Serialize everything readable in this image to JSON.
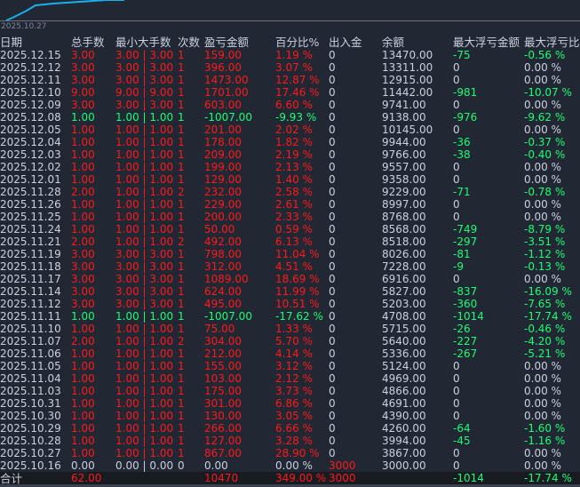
{
  "chart": {
    "start_date": "2025.10.27",
    "line_color": "#1ab0f0"
  },
  "colors": {
    "gain": "#ff1a1a",
    "loss": "#1aff73",
    "neutral": "#c9d1e0",
    "background": "#212733"
  },
  "headers": [
    "日期",
    "总手数",
    "最小大手数",
    "次数",
    "盈亏金额",
    "百分比%",
    "出入金",
    "余额",
    "最大浮亏金额",
    "最大浮亏比例"
  ],
  "rows": [
    [
      "2025.12.15",
      "3.00",
      "3.00 | 3.00",
      "1",
      "159.00",
      "1.19 %",
      "0",
      "13470.00",
      "-75",
      "-0.56 %",
      "red"
    ],
    [
      "2025.12.12",
      "3.00",
      "3.00 | 3.00",
      "1",
      "396.00",
      "3.07 %",
      "0",
      "13311.00",
      "0",
      "0.00 %",
      "red"
    ],
    [
      "2025.12.11",
      "3.00",
      "3.00 | 3.00",
      "1",
      "1473.00",
      "12.87 %",
      "0",
      "12915.00",
      "0",
      "0.00 %",
      "red"
    ],
    [
      "2025.12.10",
      "9.00",
      "9.00 | 9.00",
      "1",
      "1701.00",
      "17.46 %",
      "0",
      "11442.00",
      "-981",
      "-10.07 %",
      "red"
    ],
    [
      "2025.12.09",
      "3.00",
      "3.00 | 3.00",
      "1",
      "603.00",
      "6.60 %",
      "0",
      "9741.00",
      "0",
      "0.00 %",
      "red"
    ],
    [
      "2025.12.08",
      "1.00",
      "1.00 | 1.00",
      "1",
      "-1007.00",
      "-9.93 %",
      "0",
      "9138.00",
      "-976",
      "-9.62 %",
      "green"
    ],
    [
      "2025.12.05",
      "1.00",
      "1.00 | 1.00",
      "1",
      "201.00",
      "2.02 %",
      "0",
      "10145.00",
      "0",
      "0.00 %",
      "red"
    ],
    [
      "2025.12.04",
      "1.00",
      "1.00 | 1.00",
      "1",
      "178.00",
      "1.82 %",
      "0",
      "9944.00",
      "-36",
      "-0.37 %",
      "red"
    ],
    [
      "2025.12.03",
      "1.00",
      "1.00 | 1.00",
      "1",
      "209.00",
      "2.19 %",
      "0",
      "9766.00",
      "-38",
      "-0.40 %",
      "red"
    ],
    [
      "2025.12.02",
      "1.00",
      "1.00 | 1.00",
      "1",
      "199.00",
      "2.13 %",
      "0",
      "9557.00",
      "0",
      "0.00 %",
      "red"
    ],
    [
      "2025.12.01",
      "1.00",
      "1.00 | 1.00",
      "1",
      "129.00",
      "1.40 %",
      "0",
      "9358.00",
      "0",
      "0.00 %",
      "red"
    ],
    [
      "2025.11.28",
      "2.00",
      "1.00 | 1.00",
      "2",
      "232.00",
      "2.58 %",
      "0",
      "9229.00",
      "-71",
      "-0.78 %",
      "red"
    ],
    [
      "2025.11.26",
      "1.00",
      "1.00 | 1.00",
      "1",
      "229.00",
      "2.61 %",
      "0",
      "8997.00",
      "0",
      "0.00 %",
      "red"
    ],
    [
      "2025.11.25",
      "1.00",
      "1.00 | 1.00",
      "1",
      "200.00",
      "2.33 %",
      "0",
      "8768.00",
      "0",
      "0.00 %",
      "red"
    ],
    [
      "2025.11.24",
      "1.00",
      "1.00 | 1.00",
      "1",
      "50.00",
      "0.59 %",
      "0",
      "8568.00",
      "-749",
      "-8.79 %",
      "red"
    ],
    [
      "2025.11.21",
      "2.00",
      "1.00 | 1.00",
      "2",
      "492.00",
      "6.13 %",
      "0",
      "8518.00",
      "-297",
      "-3.51 %",
      "red"
    ],
    [
      "2025.11.19",
      "3.00",
      "3.00 | 3.00",
      "1",
      "798.00",
      "11.04 %",
      "0",
      "8026.00",
      "-81",
      "-1.12 %",
      "red"
    ],
    [
      "2025.11.18",
      "3.00",
      "3.00 | 3.00",
      "1",
      "312.00",
      "4.51 %",
      "0",
      "7228.00",
      "-9",
      "-0.13 %",
      "red"
    ],
    [
      "2025.11.17",
      "3.00",
      "3.00 | 3.00",
      "1",
      "1089.00",
      "18.69 %",
      "0",
      "6916.00",
      "0",
      "0.00 %",
      "red"
    ],
    [
      "2025.11.14",
      "3.00",
      "3.00 | 3.00",
      "1",
      "624.00",
      "11.99 %",
      "0",
      "5827.00",
      "-837",
      "-16.09 %",
      "red"
    ],
    [
      "2025.11.12",
      "3.00",
      "3.00 | 3.00",
      "1",
      "495.00",
      "10.51 %",
      "0",
      "5203.00",
      "-360",
      "-7.65 %",
      "red"
    ],
    [
      "2025.11.11",
      "1.00",
      "1.00 | 1.00",
      "1",
      "-1007.00",
      "-17.62 %",
      "0",
      "4708.00",
      "-1014",
      "-17.74 %",
      "green"
    ],
    [
      "2025.11.10",
      "1.00",
      "1.00 | 1.00",
      "1",
      "75.00",
      "1.33 %",
      "0",
      "5715.00",
      "-26",
      "-0.46 %",
      "red"
    ],
    [
      "2025.11.07",
      "2.00",
      "1.00 | 1.00",
      "2",
      "304.00",
      "5.70 %",
      "0",
      "5640.00",
      "-227",
      "-4.20 %",
      "red"
    ],
    [
      "2025.11.06",
      "1.00",
      "1.00 | 1.00",
      "1",
      "212.00",
      "4.14 %",
      "0",
      "5336.00",
      "-267",
      "-5.21 %",
      "red"
    ],
    [
      "2025.11.05",
      "1.00",
      "1.00 | 1.00",
      "1",
      "155.00",
      "3.12 %",
      "0",
      "5124.00",
      "0",
      "0.00 %",
      "red"
    ],
    [
      "2025.11.04",
      "1.00",
      "1.00 | 1.00",
      "1",
      "103.00",
      "2.12 %",
      "0",
      "4969.00",
      "0",
      "0.00 %",
      "red"
    ],
    [
      "2025.11.03",
      "1.00",
      "1.00 | 1.00",
      "1",
      "175.00",
      "3.73 %",
      "0",
      "4866.00",
      "0",
      "0.00 %",
      "red"
    ],
    [
      "2025.10.31",
      "1.00",
      "1.00 | 1.00",
      "1",
      "301.00",
      "6.86 %",
      "0",
      "4691.00",
      "0",
      "0.00 %",
      "red"
    ],
    [
      "2025.10.30",
      "1.00",
      "1.00 | 1.00",
      "1",
      "130.00",
      "3.05 %",
      "0",
      "4390.00",
      "0",
      "0.00 %",
      "red"
    ],
    [
      "2025.10.29",
      "1.00",
      "1.00 | 1.00",
      "1",
      "266.00",
      "6.66 %",
      "0",
      "4260.00",
      "-64",
      "-1.60 %",
      "red"
    ],
    [
      "2025.10.28",
      "1.00",
      "1.00 | 1.00",
      "1",
      "127.00",
      "3.28 %",
      "0",
      "3994.00",
      "-45",
      "-1.16 %",
      "red"
    ],
    [
      "2025.10.27",
      "1.00",
      "1.00 | 1.00",
      "1",
      "867.00",
      "28.90 %",
      "0",
      "3867.00",
      "0",
      "0.00 %",
      "red"
    ],
    [
      "2025.10.16",
      "0.00",
      "0.00 | 0.00",
      "0",
      "0.00",
      "0.00 %",
      "3000",
      "3000.00",
      "0",
      "0.00 %",
      "gray"
    ]
  ],
  "total": {
    "label": "合计",
    "lots": "62.00",
    "pnl": "10470",
    "percent": "349.00 %",
    "deposit": "3000",
    "max_float_loss": "-1014",
    "max_float_pct": "-17.74 %"
  }
}
